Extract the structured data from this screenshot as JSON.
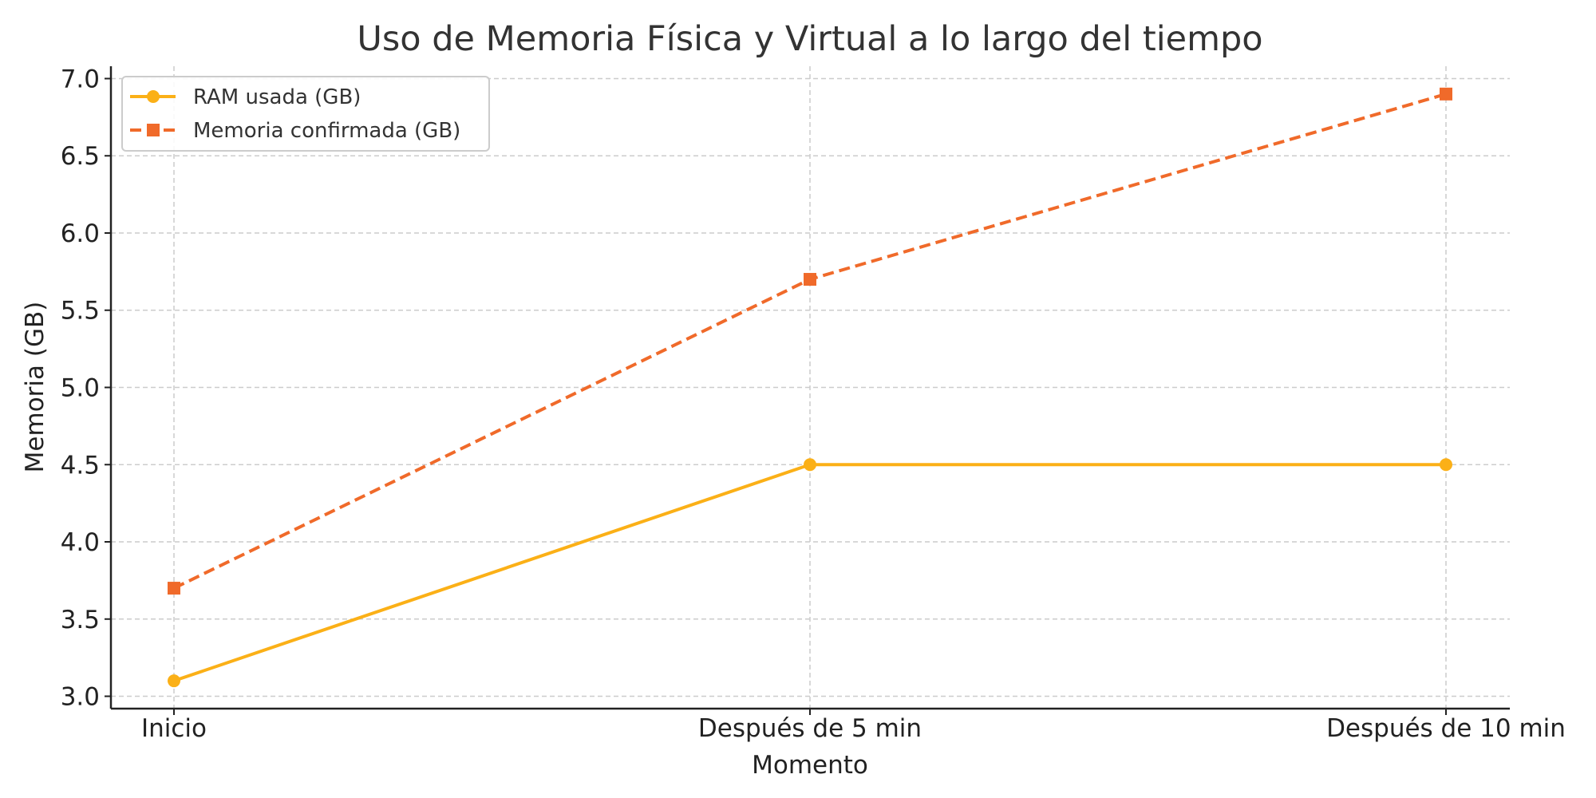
{
  "chart_data": {
    "type": "line",
    "title": "Uso de Memoria Física y Virtual a lo largo del tiempo",
    "xlabel": "Momento",
    "ylabel": "Memoria (GB)",
    "categories": [
      "Inicio",
      "Después de 5 min",
      "Después de 10 min"
    ],
    "ylim": [
      2.92,
      7.08
    ],
    "yticks": [
      3.0,
      3.5,
      4.0,
      4.5,
      5.0,
      5.5,
      6.0,
      6.5,
      7.0
    ],
    "grid": true,
    "legend_position": "top-left",
    "series": [
      {
        "name": "RAM usada (GB)",
        "values": [
          3.1,
          4.5,
          4.5
        ],
        "color": "#FBB017",
        "line_style": "solid",
        "marker": "circle"
      },
      {
        "name": "Memoria confirmada (GB)",
        "values": [
          3.7,
          5.7,
          6.9
        ],
        "color": "#F06A2A",
        "line_style": "dashed",
        "marker": "square"
      }
    ]
  }
}
